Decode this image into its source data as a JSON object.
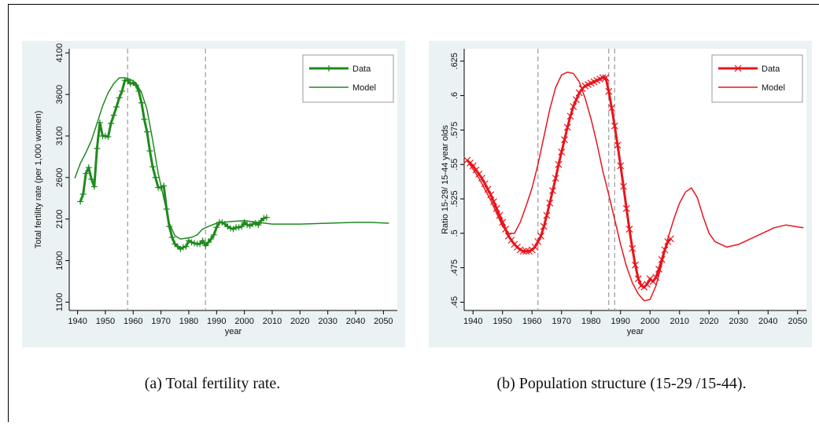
{
  "chart_data": [
    {
      "type": "line",
      "caption": "(a) Total fertility rate.",
      "xlabel": "year",
      "ylabel": "Total fertility rate (per 1,000 women)",
      "xlim": [
        1937,
        2055
      ],
      "ylim": [
        1000,
        4150
      ],
      "xticks": [
        1940,
        1950,
        1960,
        1970,
        1980,
        1990,
        2000,
        2010,
        2020,
        2030,
        2040,
        2050
      ],
      "yticks": [
        1100,
        1600,
        2100,
        2600,
        3100,
        3600,
        4100
      ],
      "vlines": [
        1958,
        1986
      ],
      "grid": false,
      "legend": "upper right",
      "series": [
        {
          "name": "Data",
          "color": "#1f8a1f",
          "marker": "+",
          "line_width": 3,
          "x": [
            1941,
            1942,
            1943,
            1944,
            1945,
            1946,
            1947,
            1948,
            1949,
            1950,
            1951,
            1952,
            1953,
            1954,
            1955,
            1956,
            1957,
            1958,
            1959,
            1960,
            1961,
            1962,
            1963,
            1964,
            1965,
            1966,
            1967,
            1968,
            1969,
            1970,
            1971,
            1972,
            1973,
            1974,
            1975,
            1976,
            1977,
            1978,
            1979,
            1980,
            1981,
            1982,
            1983,
            1984,
            1985,
            1986,
            1987,
            1988,
            1989,
            1990,
            1991,
            1992,
            1993,
            1994,
            1995,
            1996,
            1997,
            1998,
            1999,
            2000,
            2001,
            2002,
            2003,
            2004,
            2005,
            2006,
            2007,
            2008
          ],
          "values": [
            2310,
            2400,
            2650,
            2720,
            2580,
            2490,
            2950,
            3260,
            3100,
            3100,
            3090,
            3250,
            3350,
            3450,
            3560,
            3640,
            3770,
            3770,
            3730,
            3740,
            3710,
            3640,
            3500,
            3300,
            3150,
            2920,
            2730,
            2600,
            2480,
            2480,
            2500,
            2220,
            2010,
            1880,
            1800,
            1770,
            1740,
            1760,
            1770,
            1840,
            1820,
            1810,
            1800,
            1800,
            1840,
            1780,
            1820,
            1860,
            1910,
            2000,
            2060,
            2060,
            2040,
            2010,
            1990,
            1980,
            2000,
            2000,
            2010,
            2060,
            2030,
            2020,
            2040,
            2050,
            2030,
            2080,
            2110,
            2120
          ]
        },
        {
          "name": "Model",
          "color": "#1f8a1f",
          "marker": "none",
          "line_width": 1.5,
          "x": [
            1939,
            1941,
            1943,
            1945,
            1947,
            1949,
            1951,
            1953,
            1955,
            1957,
            1959,
            1961,
            1963,
            1965,
            1967,
            1969,
            1971,
            1973,
            1975,
            1977,
            1979,
            1981,
            1983,
            1985,
            1987,
            1990,
            1995,
            2000,
            2005,
            2010,
            2020,
            2030,
            2040,
            2045,
            2052
          ],
          "values": [
            2590,
            2770,
            2900,
            3050,
            3250,
            3460,
            3620,
            3730,
            3800,
            3800,
            3780,
            3740,
            3620,
            3420,
            3050,
            2650,
            2350,
            2050,
            1900,
            1860,
            1870,
            1880,
            1910,
            1980,
            2010,
            2050,
            2070,
            2080,
            2060,
            2040,
            2040,
            2050,
            2060,
            2060,
            2050
          ]
        }
      ]
    },
    {
      "type": "line",
      "caption": "(b) Population structure (15-29 /15-44).",
      "xlabel": "year",
      "ylabel": "Ratio 15-29/ 15-44 year olds",
      "xlim": [
        1937,
        2053
      ],
      "ylim": [
        0.444,
        0.634
      ],
      "xticks": [
        1940,
        1950,
        1960,
        1970,
        1980,
        1990,
        2000,
        2010,
        2020,
        2030,
        2040,
        2050
      ],
      "yticks": [
        {
          "value": 0.45,
          "label": ".45"
        },
        {
          "value": 0.475,
          "label": ".475"
        },
        {
          "value": 0.5,
          "label": ".5"
        },
        {
          "value": 0.525,
          "label": ".525"
        },
        {
          "value": 0.55,
          "label": ".55"
        },
        {
          "value": 0.575,
          "label": ".575"
        },
        {
          "value": 0.6,
          "label": ".6"
        },
        {
          "value": 0.625,
          "label": ".625"
        }
      ],
      "vlines": [
        1962,
        1986,
        1988
      ],
      "grid": false,
      "legend": "upper right",
      "series": [
        {
          "name": "Data",
          "color": "#e8141c",
          "marker": "x",
          "line_width": 3,
          "x": [
            1938,
            1939,
            1940,
            1941,
            1942,
            1943,
            1944,
            1945,
            1946,
            1947,
            1948,
            1949,
            1950,
            1951,
            1952,
            1953,
            1954,
            1955,
            1956,
            1957,
            1958,
            1959,
            1960,
            1961,
            1962,
            1963,
            1964,
            1965,
            1966,
            1967,
            1968,
            1969,
            1970,
            1971,
            1972,
            1973,
            1974,
            1975,
            1976,
            1977,
            1978,
            1979,
            1980,
            1981,
            1982,
            1983,
            1984,
            1985,
            1986,
            1987,
            1988,
            1989,
            1990,
            1991,
            1992,
            1993,
            1994,
            1995,
            1996,
            1997,
            1998,
            1999,
            2000,
            2001,
            2002,
            2003,
            2004,
            2005,
            2006,
            2007
          ],
          "values": [
            0.553,
            0.551,
            0.549,
            0.546,
            0.543,
            0.54,
            0.536,
            0.532,
            0.528,
            0.523,
            0.518,
            0.513,
            0.508,
            0.503,
            0.498,
            0.495,
            0.492,
            0.49,
            0.488,
            0.487,
            0.487,
            0.487,
            0.488,
            0.49,
            0.494,
            0.498,
            0.505,
            0.513,
            0.522,
            0.531,
            0.54,
            0.55,
            0.559,
            0.568,
            0.577,
            0.585,
            0.592,
            0.597,
            0.602,
            0.605,
            0.607,
            0.608,
            0.609,
            0.61,
            0.611,
            0.612,
            0.613,
            0.613,
            0.603,
            0.591,
            0.578,
            0.564,
            0.549,
            0.534,
            0.518,
            0.503,
            0.489,
            0.477,
            0.467,
            0.462,
            0.461,
            0.463,
            0.467,
            0.465,
            0.468,
            0.474,
            0.481,
            0.488,
            0.494,
            0.496
          ]
        },
        {
          "name": "Model",
          "color": "#e8141c",
          "marker": "none",
          "line_width": 1.5,
          "x": [
            1938,
            1942,
            1946,
            1950,
            1952,
            1954,
            1956,
            1958,
            1960,
            1962,
            1964,
            1966,
            1968,
            1970,
            1972,
            1974,
            1976,
            1978,
            1980,
            1982,
            1984,
            1986,
            1988,
            1990,
            1992,
            1994,
            1996,
            1998,
            2000,
            2002,
            2004,
            2006,
            2008,
            2010,
            2012,
            2014,
            2016,
            2018,
            2020,
            2022,
            2026,
            2030,
            2034,
            2038,
            2042,
            2046,
            2052
          ],
          "values": [
            0.553,
            0.54,
            0.524,
            0.505,
            0.5,
            0.5,
            0.508,
            0.52,
            0.533,
            0.55,
            0.57,
            0.59,
            0.606,
            0.615,
            0.617,
            0.616,
            0.61,
            0.598,
            0.583,
            0.565,
            0.545,
            0.528,
            0.51,
            0.492,
            0.476,
            0.464,
            0.456,
            0.451,
            0.452,
            0.462,
            0.478,
            0.496,
            0.51,
            0.522,
            0.53,
            0.533,
            0.526,
            0.512,
            0.5,
            0.494,
            0.49,
            0.492,
            0.496,
            0.5,
            0.504,
            0.506,
            0.504
          ]
        }
      ]
    }
  ]
}
